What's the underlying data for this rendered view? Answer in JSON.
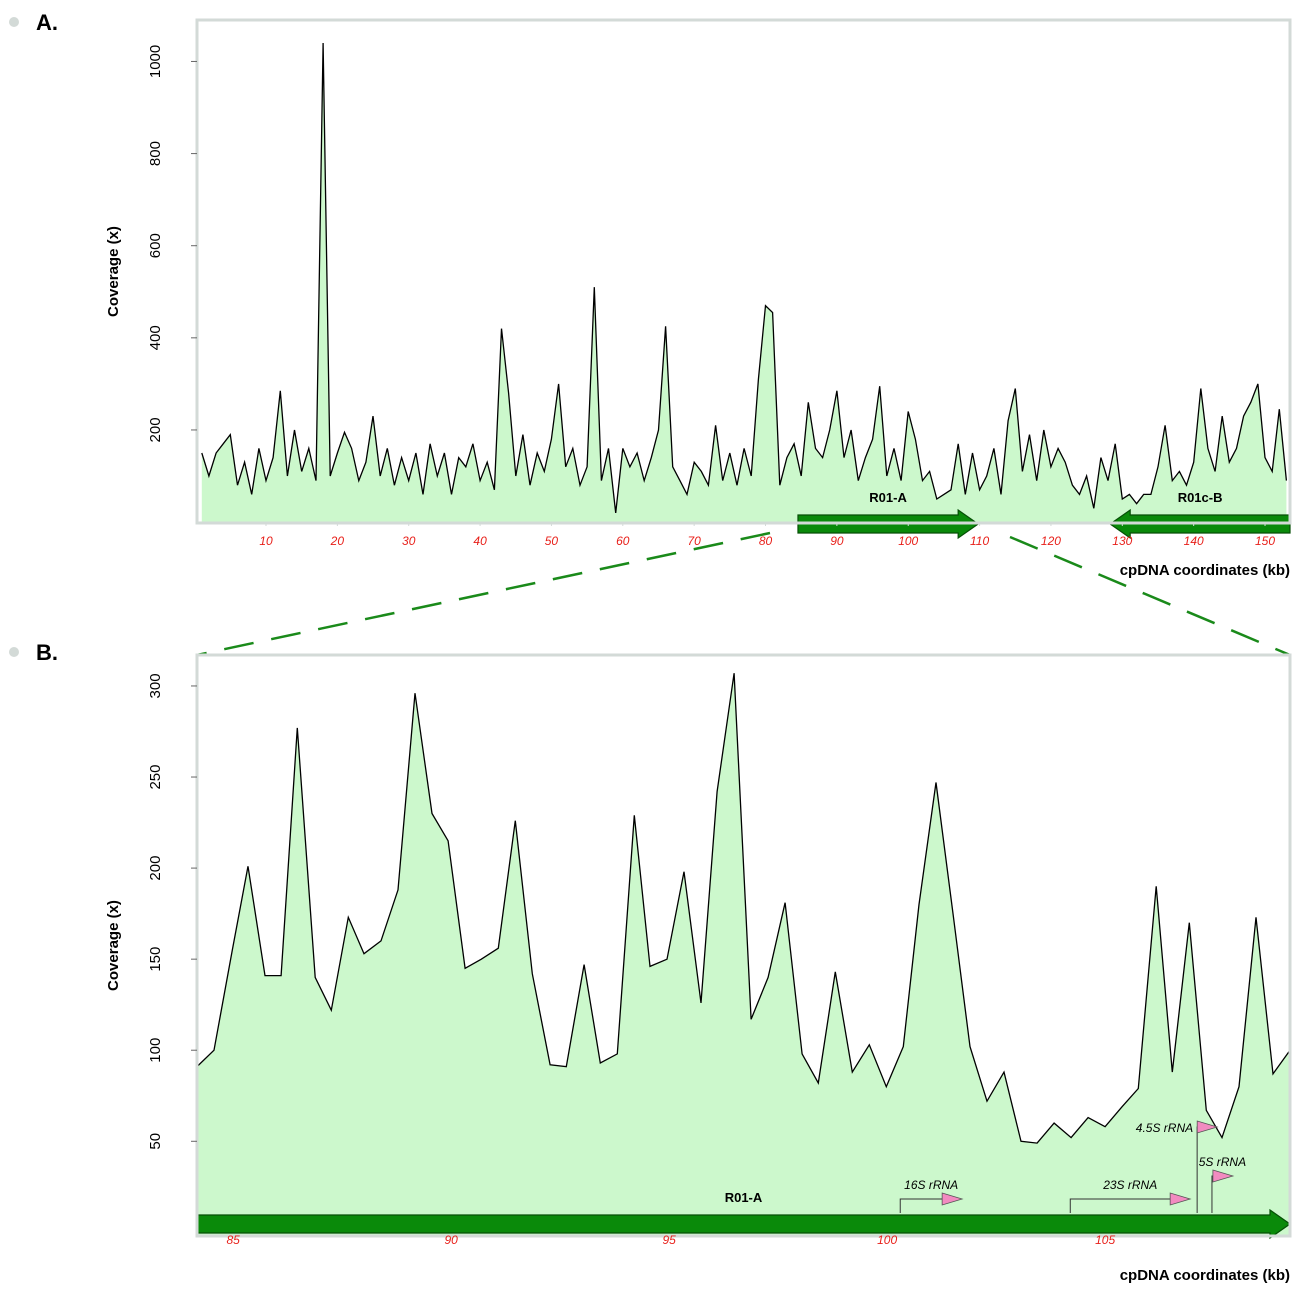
{
  "chart_data": [
    {
      "type": "area",
      "label": "A.",
      "ylabel": "Coverage (x)",
      "xlabel": "cpDNA coordinates (kb)",
      "color": "#000000",
      "fill_color": "#ccf8cc",
      "xlim": [
        0.33,
        153.5
      ],
      "ylim": [
        -2,
        1090
      ],
      "xticks": [
        10,
        20,
        30,
        40,
        50,
        60,
        70,
        80,
        90,
        100,
        110,
        120,
        130,
        140,
        150
      ],
      "yticks": [
        200,
        400,
        600,
        800,
        1000
      ],
      "x": [
        1,
        2,
        3,
        4,
        5,
        6,
        7,
        8,
        9,
        10,
        11,
        12,
        13,
        14,
        15,
        16,
        17,
        18,
        19,
        20,
        21,
        22,
        23,
        24,
        25,
        26,
        27,
        28,
        29,
        30,
        31,
        32,
        33,
        34,
        35,
        36,
        37,
        38,
        39,
        40,
        41,
        42,
        43,
        44,
        45,
        46,
        47,
        48,
        49,
        50,
        51,
        52,
        53,
        54,
        55,
        56,
        57,
        58,
        59,
        60,
        61,
        62,
        63,
        64,
        65,
        66,
        67,
        68,
        69,
        70,
        71,
        72,
        73,
        74,
        75,
        76,
        77,
        78,
        79,
        80,
        81,
        82,
        83,
        84,
        85,
        86,
        87,
        88,
        89,
        90,
        91,
        92,
        93,
        94,
        95,
        96,
        97,
        98,
        99,
        100,
        101,
        102,
        103,
        104,
        105,
        106,
        107,
        108,
        109,
        110,
        111,
        112,
        113,
        114,
        115,
        116,
        117,
        118,
        119,
        120,
        121,
        122,
        123,
        124,
        125,
        126,
        127,
        128,
        129,
        130,
        131,
        132,
        133,
        134,
        135,
        136,
        137,
        138,
        139,
        140,
        141,
        142,
        143,
        144,
        145,
        146,
        147,
        148,
        149,
        150,
        151,
        152,
        153
      ],
      "values": [
        150,
        100,
        150,
        170,
        190,
        80,
        130,
        60,
        160,
        90,
        140,
        285,
        100,
        200,
        110,
        160,
        90,
        1040,
        100,
        150,
        195,
        160,
        90,
        130,
        230,
        100,
        160,
        80,
        140,
        90,
        150,
        60,
        170,
        100,
        150,
        60,
        140,
        120,
        170,
        90,
        130,
        70,
        420,
        280,
        100,
        190,
        80,
        150,
        110,
        180,
        300,
        120,
        160,
        80,
        120,
        510,
        90,
        160,
        20,
        160,
        120,
        150,
        90,
        140,
        200,
        425,
        120,
        90,
        60,
        130,
        110,
        80,
        210,
        90,
        150,
        80,
        160,
        100,
        310,
        470,
        455,
        80,
        140,
        170,
        100,
        260,
        160,
        140,
        200,
        285,
        140,
        200,
        90,
        140,
        180,
        295,
        100,
        160,
        90,
        240,
        180,
        90,
        110,
        50,
        60,
        70,
        170,
        60,
        150,
        70,
        100,
        160,
        60,
        220,
        290,
        110,
        190,
        90,
        200,
        120,
        160,
        130,
        80,
        60,
        100,
        30,
        140,
        90,
        170,
        50,
        60,
        40,
        60,
        60,
        120,
        210,
        90,
        110,
        80,
        130,
        290,
        160,
        110,
        230,
        130,
        160,
        230,
        260,
        300,
        140,
        110,
        245,
        90
      ],
      "regions": [
        {
          "name": "R01-A",
          "start": 84.55,
          "end": 109.8
        },
        {
          "name": "R01c-B",
          "start": 153.5,
          "end": 128.3
        }
      ]
    },
    {
      "type": "area",
      "label": "B.",
      "ylabel": "Coverage (x)",
      "xlabel": "cpDNA coordinates (kb)",
      "color": "#000000",
      "fill_color": "#ccf8cc",
      "xlim": [
        84.17,
        109.24
      ],
      "ylim": [
        -2,
        317
      ],
      "xticks": [
        85,
        90,
        95,
        100,
        105
      ],
      "yticks": [
        50,
        100,
        150,
        200,
        250,
        300
      ],
      "x": [
        84.17,
        84.56,
        84.98,
        85.34,
        85.73,
        86.1,
        86.47,
        86.88,
        87.25,
        87.64,
        88.0,
        88.39,
        88.78,
        89.17,
        89.56,
        89.93,
        90.32,
        90.69,
        91.08,
        91.47,
        91.86,
        92.27,
        92.64,
        93.05,
        93.42,
        93.81,
        94.2,
        94.56,
        94.95,
        95.34,
        95.73,
        96.1,
        96.49,
        96.88,
        97.27,
        97.66,
        98.05,
        98.42,
        98.81,
        99.2,
        99.59,
        99.98,
        100.37,
        100.73,
        101.12,
        101.51,
        101.9,
        102.29,
        102.68,
        103.07,
        103.44,
        103.83,
        104.22,
        104.61,
        105.0,
        105.39,
        105.76,
        106.17,
        106.54,
        106.93,
        107.32,
        107.68,
        108.07,
        108.46,
        108.85,
        109.24
      ],
      "values": [
        91,
        100,
        155,
        201,
        141,
        141,
        277,
        140,
        122,
        173,
        153,
        160,
        188,
        296,
        230,
        215,
        145,
        150,
        156,
        226,
        142,
        92,
        91,
        147,
        93,
        98,
        229,
        146,
        150,
        198,
        126,
        242,
        307,
        117,
        140,
        181,
        98,
        82,
        143,
        88,
        103,
        80,
        102,
        180,
        247,
        175,
        102,
        72,
        88,
        50,
        49,
        60,
        52,
        63,
        58,
        69,
        79,
        190,
        88,
        170,
        67,
        52,
        80,
        173,
        87,
        100
      ],
      "regions": [
        {
          "name": "R01-A",
          "start": 84.17,
          "end": 109.24
        }
      ],
      "genes": [
        {
          "name": "16S rRNA",
          "start": 100.3,
          "end": 101.72
        },
        {
          "name": "23S rRNA",
          "start": 104.2,
          "end": 106.95
        },
        {
          "name": "4.5S rRNA",
          "start": 107.11,
          "end": 107.57
        },
        {
          "name": "5S rRNA",
          "start": 107.45,
          "end": 107.93
        }
      ]
    }
  ]
}
